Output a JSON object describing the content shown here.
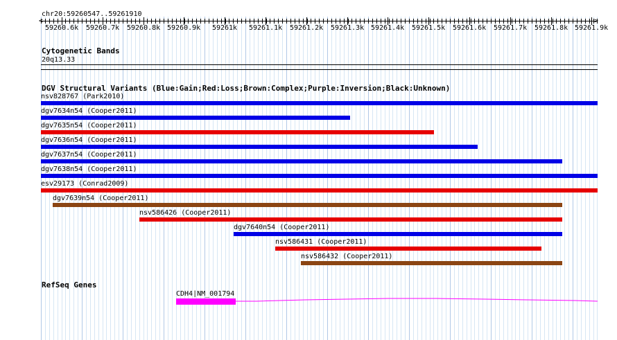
{
  "ruler": {
    "region": "chr20:59260547..59261910",
    "ticks": [
      "59260.6k",
      "59260.7k",
      "59260.8k",
      "59260.9k",
      "59261k",
      "59261.1k",
      "59261.2k",
      "59261.3k",
      "59261.4k",
      "59261.5k",
      "59261.6k",
      "59261.7k",
      "59261.8k",
      "59261.9k"
    ]
  },
  "cytoband": {
    "title": "Cytogenetic Bands",
    "band": "20q13.33"
  },
  "dgv": {
    "title": "DGV Structural Variants (Blue:Gain;Red:Loss;Brown:Complex;Purple:Inversion;Black:Unknown)",
    "colors": {
      "gain": "#0000e6",
      "loss": "#e60000",
      "complex": "#8b4513"
    },
    "items": [
      {
        "label": "nsv828767 (Park2010)",
        "type": "gain"
      },
      {
        "label": "dgv7634n54 (Cooper2011)",
        "type": "gain"
      },
      {
        "label": "dgv7635n54 (Cooper2011)",
        "type": "loss"
      },
      {
        "label": "dgv7636n54 (Cooper2011)",
        "type": "gain"
      },
      {
        "label": "dgv7637n54 (Cooper2011)",
        "type": "gain"
      },
      {
        "label": "dgv7638n54 (Cooper2011)",
        "type": "gain"
      },
      {
        "label": "esv29173 (Conrad2009)",
        "type": "loss"
      },
      {
        "label": "dgv7639n54 (Cooper2011)",
        "type": "complex"
      },
      {
        "label": "nsv586426 (Cooper2011)",
        "type": "loss"
      },
      {
        "label": "dgv7640n54 (Cooper2011)",
        "type": "gain"
      },
      {
        "label": "nsv586431 (Cooper2011)",
        "type": "loss"
      },
      {
        "label": "nsv586432 (Cooper2011)",
        "type": "complex"
      }
    ]
  },
  "refseq": {
    "title": "RefSeq Genes",
    "gene_label": "CDH4|NM_001794",
    "color": "#ff00ff"
  }
}
